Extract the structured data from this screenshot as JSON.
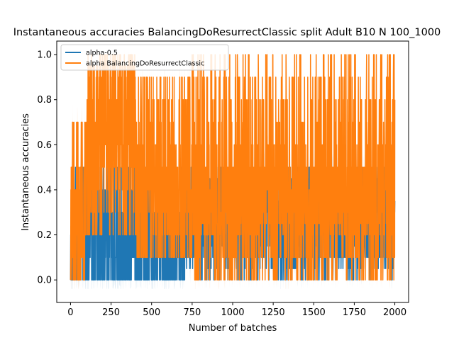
{
  "chart_data": {
    "type": "line",
    "title": "Instantaneous accuracies BalancingDoResurrectClassic split Adult B10 N 100_1000",
    "xlabel": "Number of batches",
    "ylabel": "Instantaneous accuracies",
    "xlim": [
      -85,
      2085
    ],
    "ylim": [
      -0.1,
      1.06
    ],
    "xticks": [
      0,
      250,
      500,
      750,
      1000,
      1250,
      1500,
      1750,
      2000
    ],
    "yticks": [
      0.0,
      0.2,
      0.4,
      0.6,
      0.8,
      1.0
    ],
    "xtick_labels": [
      "0",
      "250",
      "500",
      "750",
      "1000",
      "1250",
      "1500",
      "1750",
      "2000"
    ],
    "ytick_labels": [
      "0.0",
      "0.2",
      "0.4",
      "0.6",
      "0.8",
      "1.0"
    ],
    "legend_position": "upper-left",
    "grid": false,
    "series": [
      {
        "name": "alpha-0.5",
        "color": "#1f77b4",
        "x_range": [
          0,
          2000
        ]
      },
      {
        "name": "alpha BalancingDoResurrectClassic",
        "color": "#ff7f0e",
        "x_range": [
          0,
          2000
        ]
      }
    ]
  }
}
